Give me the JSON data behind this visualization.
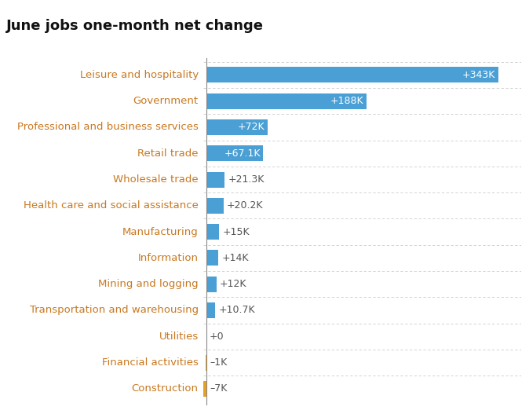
{
  "title": "June jobs one-month net change",
  "categories": [
    "Leisure and hospitality",
    "Government",
    "Professional and business services",
    "Retail trade",
    "Wholesale trade",
    "Health care and social assistance",
    "Manufacturing",
    "Information",
    "Mining and logging",
    "Transportation and warehousing",
    "Utilities",
    "Financial activities",
    "Construction"
  ],
  "values": [
    343,
    188,
    72,
    67.1,
    21.3,
    20.2,
    15,
    14,
    12,
    10.7,
    0,
    -1,
    -7
  ],
  "labels": [
    "+343K",
    "+188K",
    "+72K",
    "+67.1K",
    "+21.3K",
    "+20.2K",
    "+15K",
    "+14K",
    "+12K",
    "+10.7K",
    "+0",
    "–1K",
    "–7K"
  ],
  "bar_color_positive": "#4a9fd4",
  "bar_color_negative": "#e8a020",
  "label_color_inside": "#ffffff",
  "label_color_outside": "#555555",
  "category_color": "#c87820",
  "title_fontsize": 13,
  "label_fontsize": 9,
  "category_fontsize": 9.5,
  "background_color": "#ffffff",
  "grid_color": "#cccccc",
  "inside_label_threshold": 40
}
